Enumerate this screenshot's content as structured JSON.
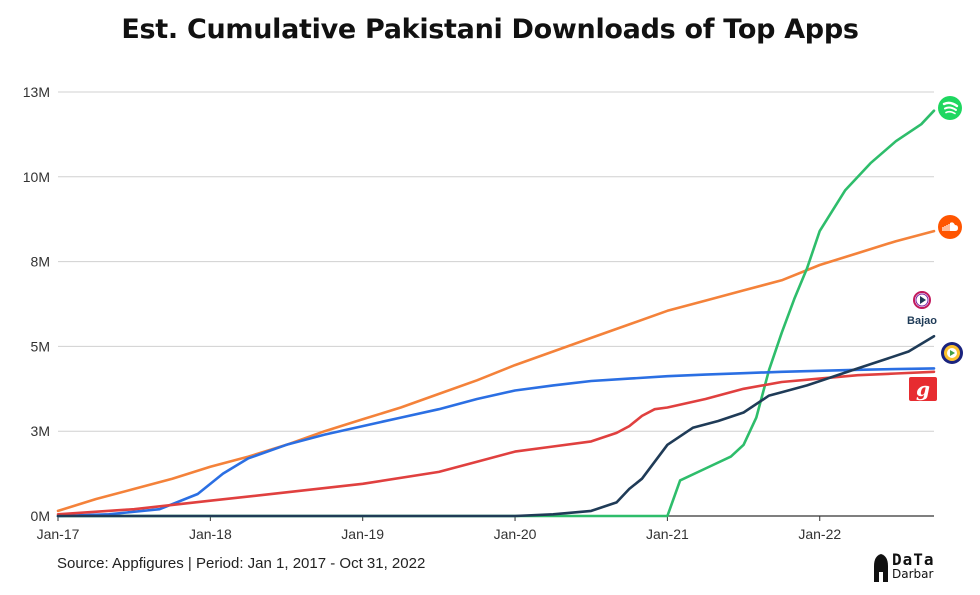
{
  "title": "Est. Cumulative Pakistani Downloads of Top Apps",
  "source": "Source: Appfigures | Period: Jan 1, 2017 - Oct 31, 2022",
  "brand": {
    "top": "DaTa",
    "bottom": "Darbar"
  },
  "icons": {
    "spotify": "spotify-icon",
    "soundcloud": "soundcloud-icon",
    "bajao": "bajao-icon",
    "bajao_label": "Bajao",
    "patari": "patari-icon",
    "gaana": "gaana-icon",
    "gaana_label": "g"
  },
  "colors": {
    "Spotify": "#2ebd6b",
    "SoundCloud": "#f4823a",
    "Bajao": "#1f3b57",
    "Patari": "#2b6fe3",
    "Gaana": "#e0403f",
    "grid": "#d0d0d0"
  },
  "chart_data": {
    "type": "line",
    "title": "Est. Cumulative Pakistani Downloads of Top Apps",
    "xlabel": "",
    "ylabel": "",
    "x_ticks": [
      "Jan-17",
      "Jan-18",
      "Jan-19",
      "Jan-20",
      "Jan-21",
      "Jan-22"
    ],
    "y_ticks": [
      "0M",
      "3M",
      "5M",
      "8M",
      "10M",
      "13M"
    ],
    "y_tick_values": [
      0,
      2.5,
      5,
      7.5,
      10,
      12.5
    ],
    "ylim": [
      0,
      12.5
    ],
    "xlim": [
      "2017-01",
      "2022-10"
    ],
    "grid": true,
    "legend": "icons at line ends (right)",
    "units": "millions of downloads",
    "series": [
      {
        "key": "SoundCloud",
        "points": [
          [
            "2017-01",
            0.15
          ],
          [
            "2017-04",
            0.5
          ],
          [
            "2017-07",
            0.8
          ],
          [
            "2017-10",
            1.1
          ],
          [
            "2018-01",
            1.45
          ],
          [
            "2018-04",
            1.75
          ],
          [
            "2018-07",
            2.1
          ],
          [
            "2018-10",
            2.5
          ],
          [
            "2019-01",
            2.85
          ],
          [
            "2019-04",
            3.2
          ],
          [
            "2019-07",
            3.6
          ],
          [
            "2019-10",
            4.0
          ],
          [
            "2020-01",
            4.45
          ],
          [
            "2020-04",
            4.85
          ],
          [
            "2020-07",
            5.25
          ],
          [
            "2020-10",
            5.65
          ],
          [
            "2021-01",
            6.05
          ],
          [
            "2021-04",
            6.35
          ],
          [
            "2021-07",
            6.65
          ],
          [
            "2021-10",
            6.95
          ],
          [
            "2022-01",
            7.4
          ],
          [
            "2022-04",
            7.75
          ],
          [
            "2022-07",
            8.1
          ],
          [
            "2022-10",
            8.4
          ]
        ]
      },
      {
        "key": "Spotify",
        "points": [
          [
            "2017-01",
            0
          ],
          [
            "2020-12",
            0
          ],
          [
            "2021-01",
            0
          ],
          [
            "2021-02",
            1.05
          ],
          [
            "2021-04",
            1.4
          ],
          [
            "2021-06",
            1.75
          ],
          [
            "2021-07",
            2.1
          ],
          [
            "2021-08",
            2.9
          ],
          [
            "2021-09",
            4.3
          ],
          [
            "2021-10",
            5.4
          ],
          [
            "2021-11",
            6.4
          ],
          [
            "2021-12",
            7.3
          ],
          [
            "2022-01",
            8.4
          ],
          [
            "2022-03",
            9.6
          ],
          [
            "2022-05",
            10.4
          ],
          [
            "2022-07",
            11.05
          ],
          [
            "2022-09",
            11.55
          ],
          [
            "2022-10",
            11.95
          ]
        ]
      },
      {
        "key": "Patari",
        "points": [
          [
            "2017-01",
            0
          ],
          [
            "2017-05",
            0.05
          ],
          [
            "2017-09",
            0.2
          ],
          [
            "2017-12",
            0.65
          ],
          [
            "2018-02",
            1.25
          ],
          [
            "2018-04",
            1.7
          ],
          [
            "2018-07",
            2.1
          ],
          [
            "2018-10",
            2.4
          ],
          [
            "2019-01",
            2.65
          ],
          [
            "2019-04",
            2.9
          ],
          [
            "2019-07",
            3.15
          ],
          [
            "2019-10",
            3.45
          ],
          [
            "2020-01",
            3.7
          ],
          [
            "2020-04",
            3.85
          ],
          [
            "2020-07",
            3.98
          ],
          [
            "2020-10",
            4.05
          ],
          [
            "2021-01",
            4.12
          ],
          [
            "2021-04",
            4.17
          ],
          [
            "2021-07",
            4.21
          ],
          [
            "2021-10",
            4.25
          ],
          [
            "2022-01",
            4.28
          ],
          [
            "2022-04",
            4.31
          ],
          [
            "2022-07",
            4.33
          ],
          [
            "2022-10",
            4.35
          ]
        ]
      },
      {
        "key": "Gaana",
        "points": [
          [
            "2017-01",
            0.05
          ],
          [
            "2017-07",
            0.2
          ],
          [
            "2018-01",
            0.45
          ],
          [
            "2018-07",
            0.7
          ],
          [
            "2019-01",
            0.95
          ],
          [
            "2019-07",
            1.3
          ],
          [
            "2019-10",
            1.6
          ],
          [
            "2020-01",
            1.9
          ],
          [
            "2020-04",
            2.05
          ],
          [
            "2020-07",
            2.2
          ],
          [
            "2020-09",
            2.45
          ],
          [
            "2020-10",
            2.65
          ],
          [
            "2020-11",
            2.95
          ],
          [
            "2020-12",
            3.15
          ],
          [
            "2021-01",
            3.2
          ],
          [
            "2021-04",
            3.45
          ],
          [
            "2021-07",
            3.75
          ],
          [
            "2021-10",
            3.95
          ],
          [
            "2022-01",
            4.05
          ],
          [
            "2022-04",
            4.15
          ],
          [
            "2022-07",
            4.2
          ],
          [
            "2022-10",
            4.25
          ]
        ]
      },
      {
        "key": "Bajao",
        "points": [
          [
            "2017-01",
            0
          ],
          [
            "2020-01",
            0
          ],
          [
            "2020-04",
            0.05
          ],
          [
            "2020-07",
            0.15
          ],
          [
            "2020-09",
            0.4
          ],
          [
            "2020-10",
            0.8
          ],
          [
            "2020-11",
            1.1
          ],
          [
            "2021-01",
            2.1
          ],
          [
            "2021-03",
            2.6
          ],
          [
            "2021-05",
            2.8
          ],
          [
            "2021-07",
            3.05
          ],
          [
            "2021-09",
            3.55
          ],
          [
            "2021-10",
            3.65
          ],
          [
            "2021-12",
            3.85
          ],
          [
            "2022-02",
            4.1
          ],
          [
            "2022-04",
            4.35
          ],
          [
            "2022-06",
            4.6
          ],
          [
            "2022-08",
            4.85
          ],
          [
            "2022-10",
            5.3
          ]
        ]
      }
    ]
  }
}
